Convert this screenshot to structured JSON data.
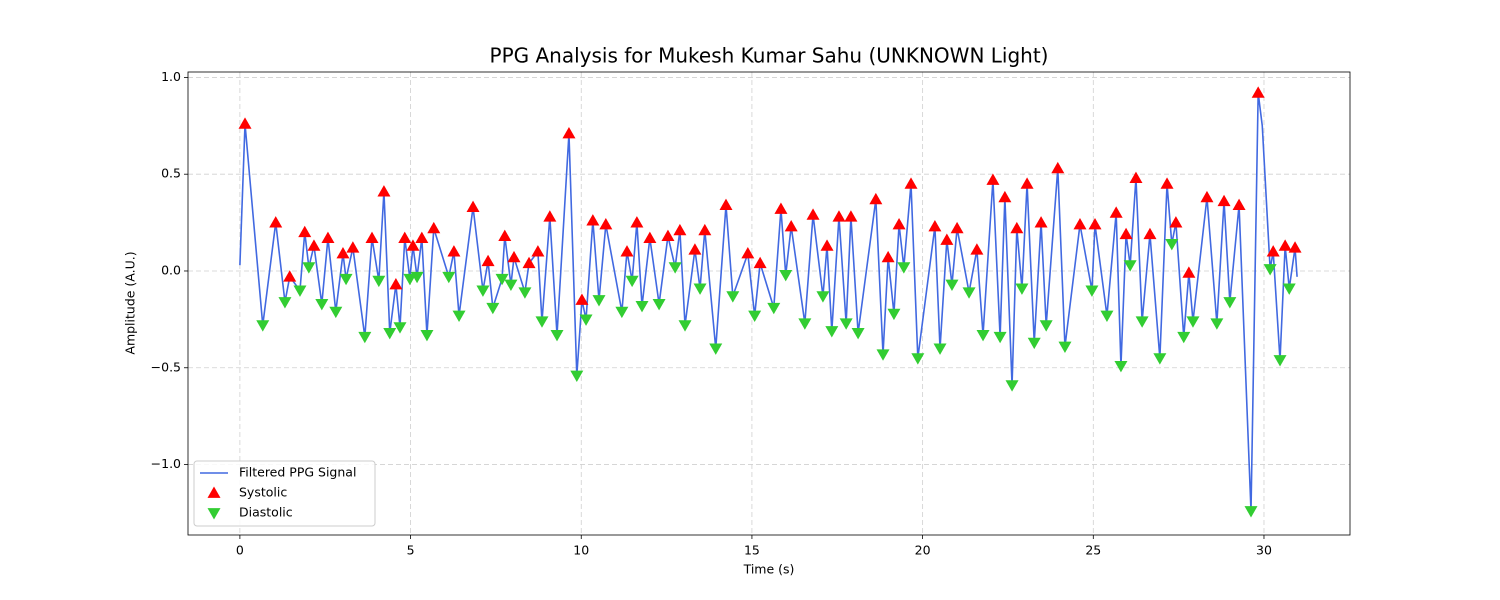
{
  "chart_data": {
    "type": "line",
    "title": "PPG Analysis for Mukesh Kumar Sahu (UNKNOWN Light)",
    "xlabel": "Time (s)",
    "ylabel": "Amplitude (A.U.)",
    "xlim": [
      -1.52,
      32.52
    ],
    "ylim": [
      -1.364,
      1.028
    ],
    "xticks": [
      0,
      5,
      10,
      15,
      20,
      25,
      30
    ],
    "yticks": [
      {
        "value": -1.0,
        "label": "−1.0"
      },
      {
        "value": -0.5,
        "label": "−0.5"
      },
      {
        "value": 0.0,
        "label": "0.0"
      },
      {
        "value": 0.5,
        "label": "0.5"
      },
      {
        "value": 1.0,
        "label": "1.0"
      }
    ],
    "grid": true,
    "legend": "lower left",
    "series": [
      {
        "name": "Filtered PPG Signal",
        "color": "#4169e1",
        "marker": "line",
        "x": [
          0,
          0.15,
          0.67,
          1.05,
          1.32,
          1.46,
          1.76,
          1.9,
          2.02,
          2.17,
          2.4,
          2.58,
          2.81,
          3.02,
          3.11,
          3.31,
          3.66,
          3.87,
          4.07,
          4.22,
          4.39,
          4.57,
          4.69,
          4.83,
          4.98,
          5.07,
          5.19,
          5.33,
          5.48,
          5.68,
          6.12,
          6.27,
          6.42,
          6.83,
          7.12,
          7.27,
          7.41,
          7.68,
          7.76,
          7.94,
          8.03,
          8.35,
          8.47,
          8.73,
          8.85,
          9.08,
          9.29,
          9.64,
          9.87,
          10.02,
          10.14,
          10.34,
          10.52,
          10.72,
          11.19,
          11.34,
          11.49,
          11.63,
          11.78,
          12.01,
          12.28,
          12.54,
          12.75,
          12.89,
          13.04,
          13.33,
          13.48,
          13.62,
          13.94,
          14.24,
          14.44,
          14.88,
          15.08,
          15.24,
          15.64,
          15.85,
          15.99,
          16.15,
          16.55,
          16.79,
          17.08,
          17.2,
          17.34,
          17.55,
          17.76,
          17.9,
          18.11,
          18.63,
          18.84,
          18.99,
          19.16,
          19.31,
          19.45,
          19.66,
          19.86,
          20.36,
          20.51,
          20.71,
          20.86,
          21.01,
          21.36,
          21.59,
          21.77,
          22.06,
          22.27,
          22.41,
          22.62,
          22.76,
          22.91,
          23.06,
          23.27,
          23.47,
          23.62,
          23.96,
          24.17,
          24.61,
          24.96,
          25.05,
          25.4,
          25.67,
          25.81,
          25.96,
          26.08,
          26.25,
          26.43,
          26.66,
          26.95,
          27.16,
          27.3,
          27.42,
          27.65,
          27.8,
          27.92,
          28.33,
          28.62,
          28.83,
          29.0,
          29.27,
          29.62,
          29.83,
          29.95,
          30.18,
          30.27,
          30.47,
          30.62,
          30.74,
          30.91,
          30.97
        ],
        "values": [
          0.03,
          0.76,
          -0.28,
          0.25,
          -0.16,
          -0.03,
          -0.1,
          0.2,
          0.02,
          0.13,
          -0.17,
          0.17,
          -0.21,
          0.09,
          -0.04,
          0.12,
          -0.34,
          0.17,
          -0.05,
          0.41,
          -0.32,
          -0.07,
          -0.29,
          0.17,
          -0.04,
          0.13,
          -0.03,
          0.17,
          -0.33,
          0.22,
          -0.03,
          0.1,
          -0.23,
          0.33,
          -0.1,
          0.05,
          -0.19,
          -0.04,
          0.18,
          -0.07,
          0.07,
          -0.11,
          0.04,
          0.1,
          -0.26,
          0.28,
          -0.33,
          0.71,
          -0.54,
          -0.15,
          -0.25,
          0.26,
          -0.15,
          0.24,
          -0.21,
          0.1,
          -0.05,
          0.25,
          -0.18,
          0.17,
          -0.17,
          0.18,
          0.02,
          0.21,
          -0.28,
          0.11,
          -0.09,
          0.21,
          -0.4,
          0.34,
          -0.13,
          0.09,
          -0.23,
          0.04,
          -0.19,
          0.32,
          -0.02,
          0.23,
          -0.27,
          0.29,
          -0.13,
          0.13,
          -0.31,
          0.28,
          -0.27,
          0.28,
          -0.32,
          0.37,
          -0.43,
          0.07,
          -0.22,
          0.24,
          0.02,
          0.45,
          -0.45,
          0.23,
          -0.4,
          0.16,
          -0.07,
          0.22,
          -0.11,
          0.11,
          -0.33,
          0.47,
          -0.34,
          0.38,
          -0.59,
          0.22,
          -0.09,
          0.45,
          -0.37,
          0.25,
          -0.28,
          0.53,
          -0.39,
          0.24,
          -0.1,
          0.24,
          -0.23,
          0.3,
          -0.49,
          0.19,
          0.03,
          0.48,
          -0.26,
          0.19,
          -0.45,
          0.45,
          0.14,
          0.25,
          -0.34,
          -0.01,
          -0.26,
          0.38,
          -0.27,
          0.36,
          -0.16,
          0.34,
          -1.24,
          0.92,
          0.75,
          0.01,
          0.1,
          -0.46,
          0.13,
          -0.09,
          0.12,
          -0.03
        ]
      },
      {
        "name": "Systolic",
        "color": "#ff0000",
        "marker": "triangle-up",
        "x": [
          0.15,
          1.05,
          1.46,
          1.9,
          2.17,
          2.58,
          3.02,
          3.31,
          3.87,
          4.22,
          4.57,
          4.83,
          5.07,
          5.33,
          5.68,
          6.27,
          6.83,
          7.27,
          7.76,
          8.03,
          8.47,
          8.73,
          9.08,
          9.64,
          10.02,
          10.34,
          10.72,
          11.34,
          11.63,
          12.01,
          12.54,
          12.89,
          13.33,
          13.62,
          14.24,
          14.88,
          15.24,
          15.85,
          16.15,
          16.79,
          17.2,
          17.55,
          17.9,
          18.63,
          18.99,
          19.31,
          19.66,
          20.36,
          20.71,
          21.01,
          21.59,
          22.06,
          22.41,
          22.76,
          23.06,
          23.47,
          23.96,
          24.61,
          25.05,
          25.67,
          25.96,
          26.25,
          26.66,
          27.16,
          27.42,
          27.8,
          28.33,
          28.83,
          29.27,
          29.83,
          30.27,
          30.62,
          30.91
        ],
        "values": [
          0.76,
          0.25,
          -0.03,
          0.2,
          0.13,
          0.17,
          0.09,
          0.12,
          0.17,
          0.41,
          -0.07,
          0.17,
          0.13,
          0.17,
          0.22,
          0.1,
          0.33,
          0.05,
          0.18,
          0.07,
          0.04,
          0.1,
          0.28,
          0.71,
          -0.15,
          0.26,
          0.24,
          0.1,
          0.25,
          0.17,
          0.18,
          0.21,
          0.11,
          0.21,
          0.34,
          0.09,
          0.04,
          0.32,
          0.23,
          0.29,
          0.13,
          0.28,
          0.28,
          0.37,
          0.07,
          0.24,
          0.45,
          0.23,
          0.16,
          0.22,
          0.11,
          0.47,
          0.38,
          0.22,
          0.45,
          0.25,
          0.53,
          0.24,
          0.24,
          0.3,
          0.19,
          0.48,
          0.19,
          0.45,
          0.25,
          -0.01,
          0.38,
          0.36,
          0.34,
          0.92,
          0.1,
          0.13,
          0.12
        ]
      },
      {
        "name": "Diastolic",
        "color": "#32cd32",
        "marker": "triangle-down",
        "x": [
          0.67,
          1.32,
          1.76,
          2.02,
          2.4,
          2.81,
          3.11,
          3.66,
          4.07,
          4.39,
          4.69,
          4.98,
          5.19,
          5.48,
          6.12,
          6.42,
          7.12,
          7.41,
          7.68,
          7.94,
          8.35,
          8.85,
          9.29,
          9.87,
          10.14,
          10.52,
          11.19,
          11.49,
          11.78,
          12.28,
          12.75,
          13.04,
          13.48,
          13.94,
          14.44,
          15.08,
          15.64,
          15.99,
          16.55,
          17.08,
          17.34,
          17.76,
          18.11,
          18.84,
          19.16,
          19.45,
          19.86,
          20.51,
          20.86,
          21.36,
          21.77,
          22.27,
          22.62,
          22.91,
          23.27,
          23.62,
          24.17,
          24.96,
          25.4,
          25.81,
          26.08,
          26.43,
          26.95,
          27.3,
          27.65,
          27.92,
          28.62,
          29.0,
          29.62,
          30.18,
          30.47,
          30.74
        ],
        "values": [
          -0.28,
          -0.16,
          -0.1,
          0.02,
          -0.17,
          -0.21,
          -0.04,
          -0.34,
          -0.05,
          -0.32,
          -0.29,
          -0.04,
          -0.03,
          -0.33,
          -0.03,
          -0.23,
          -0.1,
          -0.19,
          -0.04,
          -0.07,
          -0.11,
          -0.26,
          -0.33,
          -0.54,
          -0.25,
          -0.15,
          -0.21,
          -0.05,
          -0.18,
          -0.17,
          0.02,
          -0.28,
          -0.09,
          -0.4,
          -0.13,
          -0.23,
          -0.19,
          -0.02,
          -0.27,
          -0.13,
          -0.31,
          -0.27,
          -0.32,
          -0.43,
          -0.22,
          0.02,
          -0.45,
          -0.4,
          -0.07,
          -0.11,
          -0.33,
          -0.34,
          -0.59,
          -0.09,
          -0.37,
          -0.28,
          -0.39,
          -0.1,
          -0.23,
          -0.49,
          0.03,
          -0.26,
          -0.45,
          0.14,
          -0.34,
          -0.26,
          -0.27,
          -0.16,
          -1.24,
          0.01,
          -0.46,
          -0.09
        ]
      }
    ]
  }
}
